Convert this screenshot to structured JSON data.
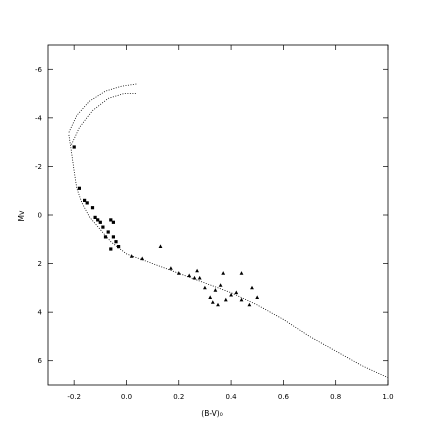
{
  "chart_data": {
    "type": "scatter",
    "title": "",
    "xlabel": "(B-V)₀",
    "ylabel": "Mv",
    "xlim": [
      -0.3,
      1.0
    ],
    "ylim": [
      7,
      -7
    ],
    "y_inverted": true,
    "grid": false,
    "x_ticks": [
      -0.2,
      0.0,
      0.2,
      0.4,
      0.6,
      0.8,
      1.0
    ],
    "x_tick_labels": [
      "-0.2",
      "0.0",
      "0.2",
      "0.4",
      "0.6",
      "0.8",
      "1.0"
    ],
    "y_ticks": [
      -6,
      -4,
      -2,
      0,
      2,
      4,
      6
    ],
    "y_tick_labels": [
      "-6",
      "-4",
      "-2",
      "0",
      "2",
      "4",
      "6"
    ],
    "isochrone_zams": [
      [
        -0.22,
        -3.3
      ],
      [
        -0.21,
        -2.6
      ],
      [
        -0.2,
        -1.8
      ],
      [
        -0.19,
        -1.1
      ],
      [
        -0.17,
        -0.5
      ],
      [
        -0.14,
        0.1
      ],
      [
        -0.1,
        0.6
      ],
      [
        -0.06,
        1.1
      ],
      [
        0.0,
        1.6
      ],
      [
        0.05,
        1.8
      ],
      [
        0.1,
        2.0
      ],
      [
        0.2,
        2.4
      ],
      [
        0.3,
        2.8
      ],
      [
        0.4,
        3.2
      ],
      [
        0.5,
        3.7
      ],
      [
        0.6,
        4.3
      ],
      [
        0.7,
        5.0
      ],
      [
        0.8,
        5.6
      ],
      [
        0.9,
        6.2
      ],
      [
        1.0,
        6.7
      ]
    ],
    "isochrone_upper_a": [
      [
        -0.22,
        -3.4
      ],
      [
        -0.19,
        -4.1
      ],
      [
        -0.14,
        -4.7
      ],
      [
        -0.08,
        -5.1
      ],
      [
        -0.02,
        -5.3
      ],
      [
        0.04,
        -5.4
      ]
    ],
    "isochrone_upper_b": [
      [
        -0.21,
        -2.9
      ],
      [
        -0.18,
        -3.6
      ],
      [
        -0.13,
        -4.3
      ],
      [
        -0.07,
        -4.8
      ],
      [
        -0.01,
        -5.0
      ],
      [
        0.04,
        -5.0
      ]
    ],
    "series": [
      {
        "marker": "square",
        "points": [
          [
            -0.2,
            -2.8
          ],
          [
            -0.18,
            -1.1
          ],
          [
            -0.16,
            -0.6
          ],
          [
            -0.15,
            -0.5
          ],
          [
            -0.13,
            -0.3
          ],
          [
            -0.12,
            0.1
          ],
          [
            -0.11,
            0.2
          ],
          [
            -0.1,
            0.3
          ],
          [
            -0.09,
            0.5
          ],
          [
            -0.08,
            0.9
          ],
          [
            -0.07,
            0.7
          ],
          [
            -0.06,
            0.2
          ],
          [
            -0.05,
            0.3
          ],
          [
            -0.05,
            0.9
          ],
          [
            -0.06,
            1.4
          ],
          [
            -0.04,
            1.1
          ],
          [
            -0.03,
            1.3
          ]
        ]
      },
      {
        "marker": "triangle",
        "points": [
          [
            0.02,
            1.7
          ],
          [
            0.06,
            1.8
          ],
          [
            0.13,
            1.3
          ],
          [
            0.17,
            2.2
          ],
          [
            0.2,
            2.4
          ],
          [
            0.24,
            2.5
          ],
          [
            0.27,
            2.3
          ],
          [
            0.28,
            2.6
          ],
          [
            0.3,
            3.0
          ],
          [
            0.32,
            3.4
          ],
          [
            0.33,
            3.6
          ],
          [
            0.36,
            2.9
          ],
          [
            0.38,
            3.5
          ],
          [
            0.4,
            3.3
          ],
          [
            0.42,
            3.2
          ],
          [
            0.44,
            3.5
          ],
          [
            0.47,
            3.7
          ],
          [
            0.48,
            3.0
          ],
          [
            0.5,
            3.4
          ],
          [
            0.26,
            2.6
          ],
          [
            0.34,
            3.1
          ],
          [
            0.44,
            2.4
          ],
          [
            0.37,
            2.4
          ],
          [
            0.35,
            3.7
          ]
        ]
      }
    ]
  }
}
